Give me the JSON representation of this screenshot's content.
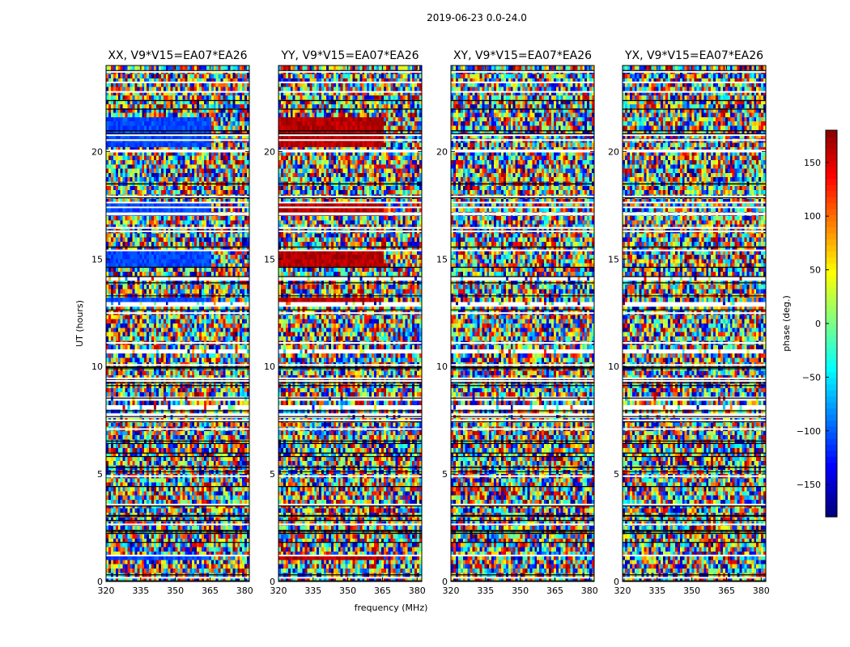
{
  "chart_data": {
    "type": "heatmap",
    "title": "2019-06-23 0.0-24.0",
    "xlabel": "frequency (MHz)",
    "ylabel": "UT (hours)",
    "xlim": [
      320,
      382
    ],
    "ylim": [
      0,
      24
    ],
    "x_ticks": [
      320,
      335,
      350,
      365,
      380
    ],
    "y_ticks": [
      0,
      5,
      10,
      15,
      20
    ],
    "panels": [
      {
        "title": "XX, V9*V15=EA07*EA26",
        "coherent_phase": -110
      },
      {
        "title": "YY, V9*V15=EA07*EA26",
        "coherent_phase": 160
      },
      {
        "title": "XY, V9*V15=EA07*EA26",
        "coherent_phase": null
      },
      {
        "title": "YX, V9*V15=EA07*EA26",
        "coherent_phase": null
      }
    ],
    "colorbar": {
      "label": "phase (deg.)",
      "range": [
        -180,
        180
      ],
      "ticks": [
        -150,
        -100,
        -50,
        0,
        50,
        100,
        150
      ],
      "colormap": "jet"
    }
  }
}
